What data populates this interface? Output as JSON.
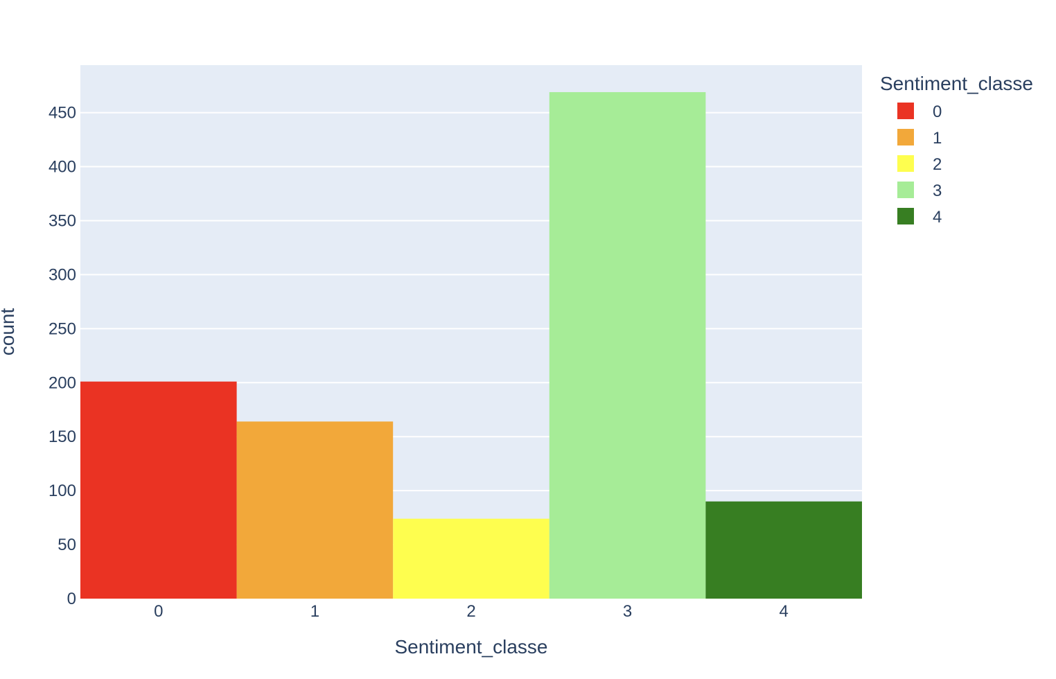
{
  "chart_data": {
    "type": "bar",
    "title": "",
    "xlabel": "Sentiment_classe",
    "ylabel": "count",
    "categories": [
      "0",
      "1",
      "2",
      "3",
      "4"
    ],
    "values": [
      201,
      164,
      74,
      469,
      90
    ],
    "colors": [
      "#ea3323",
      "#f2a83a",
      "#fefe4f",
      "#a6ec97",
      "#377e22"
    ],
    "ylim": [
      0,
      494
    ],
    "yticks": [
      0,
      50,
      100,
      150,
      200,
      250,
      300,
      350,
      400,
      450
    ],
    "grid": true,
    "plot_background": "#e5ecf6",
    "legend": {
      "title": "Sentiment_classe",
      "placement": "top-right",
      "entries": [
        "0",
        "1",
        "2",
        "3",
        "4"
      ]
    }
  }
}
